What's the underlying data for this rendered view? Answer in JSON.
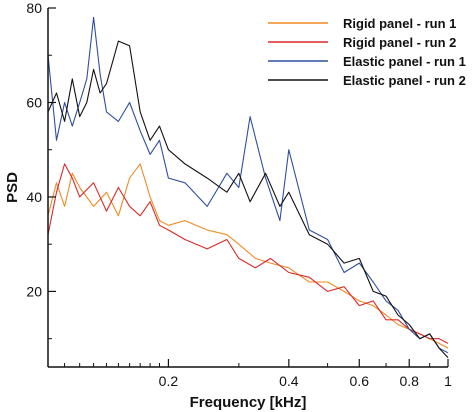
{
  "chart_data": {
    "type": "line",
    "xlabel": "Frequency [kHz]",
    "ylabel": "PSD",
    "xscale": "log",
    "xlim": [
      0.1,
      1.0
    ],
    "ylim": [
      4,
      80
    ],
    "xticks": [
      {
        "value": 0.2,
        "label": "0.2"
      },
      {
        "value": 0.4,
        "label": "0.4"
      },
      {
        "value": 0.6,
        "label": "0.6"
      },
      {
        "value": 0.8,
        "label": "0.8"
      },
      {
        "value": 1.0,
        "label": "1"
      }
    ],
    "yticks": [
      {
        "value": 20,
        "label": "20"
      },
      {
        "value": 40,
        "label": "40"
      },
      {
        "value": 60,
        "label": "60"
      },
      {
        "value": 80,
        "label": "80"
      }
    ],
    "legend_position": "top-right",
    "series": [
      {
        "name": "Rigid panel - run 1",
        "color": "#f08a24",
        "x": [
          0.1,
          0.105,
          0.11,
          0.115,
          0.12,
          0.13,
          0.14,
          0.15,
          0.16,
          0.17,
          0.18,
          0.19,
          0.2,
          0.22,
          0.25,
          0.28,
          0.3,
          0.33,
          0.36,
          0.4,
          0.45,
          0.5,
          0.55,
          0.6,
          0.65,
          0.7,
          0.75,
          0.8,
          0.85,
          0.9,
          0.95,
          1.0
        ],
        "y": [
          36,
          43,
          38,
          45,
          42,
          38,
          41,
          36,
          44,
          47,
          40,
          35,
          34,
          35,
          33,
          32,
          30,
          27,
          26,
          25,
          22,
          22,
          20,
          18,
          17,
          15,
          13,
          12,
          11,
          10,
          9,
          8
        ]
      },
      {
        "name": "Rigid panel - run 2",
        "color": "#d9282a",
        "x": [
          0.1,
          0.105,
          0.11,
          0.115,
          0.12,
          0.13,
          0.14,
          0.15,
          0.16,
          0.17,
          0.18,
          0.19,
          0.2,
          0.22,
          0.25,
          0.28,
          0.3,
          0.33,
          0.36,
          0.4,
          0.45,
          0.5,
          0.55,
          0.6,
          0.65,
          0.7,
          0.75,
          0.8,
          0.85,
          0.9,
          0.95,
          1.0
        ],
        "y": [
          32,
          41,
          47,
          44,
          40,
          43,
          37,
          42,
          38,
          36,
          39,
          34,
          33,
          31,
          29,
          31,
          27,
          25,
          27,
          24,
          23,
          20,
          21,
          17,
          18,
          14,
          14,
          12,
          11,
          10,
          10,
          9
        ]
      },
      {
        "name": "Elastic panel - run 1",
        "color": "#2f4f9e",
        "x": [
          0.1,
          0.105,
          0.11,
          0.115,
          0.12,
          0.125,
          0.13,
          0.135,
          0.14,
          0.15,
          0.16,
          0.17,
          0.18,
          0.19,
          0.2,
          0.22,
          0.25,
          0.28,
          0.3,
          0.32,
          0.35,
          0.38,
          0.4,
          0.45,
          0.5,
          0.55,
          0.6,
          0.65,
          0.7,
          0.75,
          0.8,
          0.85,
          0.9,
          0.95,
          1.0
        ],
        "y": [
          70,
          52,
          60,
          55,
          60,
          65,
          78,
          66,
          58,
          56,
          60,
          54,
          49,
          52,
          44,
          43,
          38,
          45,
          42,
          57,
          44,
          35,
          50,
          33,
          31,
          24,
          26,
          22,
          18,
          16,
          12,
          10,
          11,
          8,
          7
        ]
      },
      {
        "name": "Elastic panel - run 2",
        "color": "#111111",
        "x": [
          0.1,
          0.105,
          0.11,
          0.115,
          0.12,
          0.125,
          0.13,
          0.135,
          0.14,
          0.15,
          0.16,
          0.17,
          0.18,
          0.19,
          0.2,
          0.22,
          0.25,
          0.28,
          0.3,
          0.32,
          0.35,
          0.38,
          0.4,
          0.45,
          0.5,
          0.55,
          0.6,
          0.65,
          0.7,
          0.75,
          0.8,
          0.85,
          0.9,
          0.95,
          1.0
        ],
        "y": [
          58,
          62,
          56,
          65,
          57,
          60,
          67,
          62,
          64,
          73,
          72,
          58,
          52,
          55,
          50,
          47,
          44,
          41,
          45,
          39,
          45,
          38,
          41,
          32,
          30,
          26,
          27,
          20,
          19,
          15,
          13,
          10,
          11,
          8,
          6
        ]
      }
    ]
  }
}
